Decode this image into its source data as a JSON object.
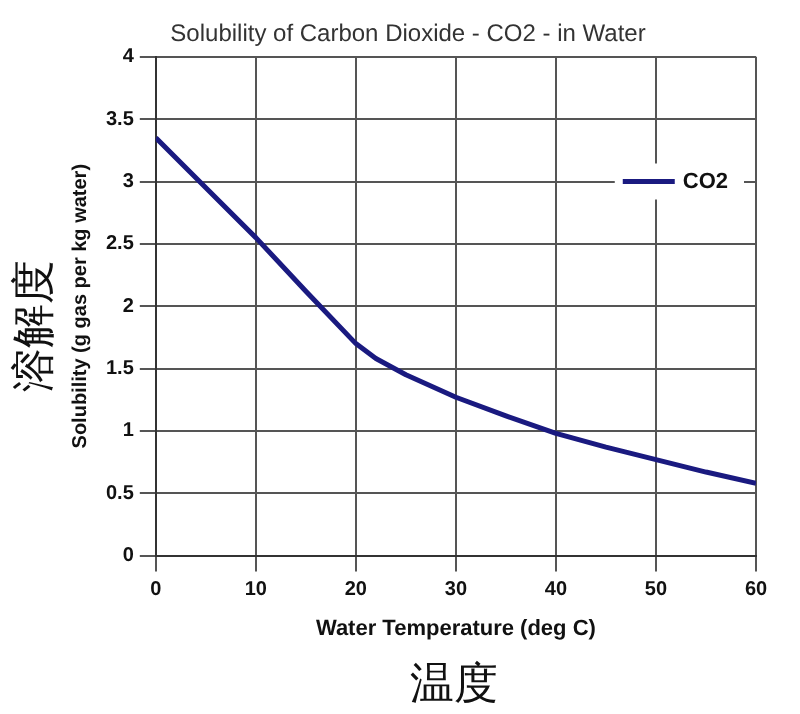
{
  "chart_data": {
    "type": "line",
    "title": "Solubility of Carbon Dioxide - CO2 - in Water",
    "xlabel": "Water Temperature (deg C)",
    "ylabel": "Solubility (g gas per kg water)",
    "annotations": [
      "溶解度",
      "温度"
    ],
    "x": [
      0,
      5,
      10,
      15,
      20,
      22,
      25,
      30,
      35,
      40,
      45,
      50,
      55,
      60
    ],
    "series": [
      {
        "name": "CO2",
        "color": "#1a1a80",
        "values": [
          3.35,
          2.95,
          2.55,
          2.12,
          1.7,
          1.58,
          1.45,
          1.27,
          1.12,
          0.98,
          0.87,
          0.77,
          0.67,
          0.58
        ]
      }
    ],
    "xlim": [
      0,
      60
    ],
    "xticks": [
      0,
      10,
      20,
      30,
      40,
      50,
      60
    ],
    "ylim": [
      0,
      4
    ],
    "yticks": [
      0,
      0.5,
      1,
      1.5,
      2,
      2.5,
      3,
      3.5,
      4
    ],
    "grid": true,
    "legend": "top right",
    "marker": "none",
    "line_style": "solid"
  }
}
